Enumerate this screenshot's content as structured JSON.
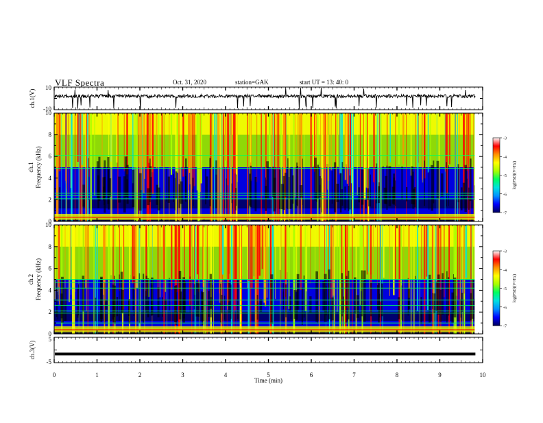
{
  "header": {
    "title": "VLF Spectra",
    "date": "Oct. 31, 2020",
    "station": "station=GAK",
    "start": "start  UT =   13: 40: 0"
  },
  "colors": {
    "spectrogram_palette": [
      "#000000",
      "#00007a",
      "#0000ff",
      "#0090ff",
      "#00e0e0",
      "#00ff60",
      "#a8ff00",
      "#ffff00",
      "#ff9000",
      "#ff0000",
      "#ffffff"
    ]
  },
  "chart_data": [
    {
      "type": "line",
      "panel": "ch1-waveform",
      "ylabel": "ch.1(V)",
      "ylim": [
        -10,
        10
      ],
      "yticks": [
        "10",
        "-10"
      ],
      "xlim": [
        0,
        10
      ],
      "description_values": "noisy waveform near +2 V with sporadic negative spikes"
    },
    {
      "type": "heatmap",
      "panel": "ch1-spectrogram",
      "ylabel": "ch.1\nFrequency (kHz)",
      "ylabel_line1": "ch.1",
      "ylabel_line2": "Frequency (kHz)",
      "ylim": [
        0,
        10
      ],
      "yticks": [
        "0",
        "2",
        "4",
        "6",
        "8",
        "10"
      ],
      "xlim": [
        0,
        9.83
      ],
      "colorbar": {
        "label": "log(PSD)(V²/Hz)",
        "range": [
          -7,
          -3
        ],
        "ticks": [
          "-3",
          "-4",
          "-5",
          "-6",
          "-7"
        ]
      }
    },
    {
      "type": "heatmap",
      "panel": "ch2-spectrogram",
      "ylabel": "ch.2\nFrequency (kHz)",
      "ylabel_line1": "ch.2",
      "ylabel_line2": "Frequency (kHz)",
      "ylim": [
        0,
        10
      ],
      "yticks": [
        "0",
        "2",
        "4",
        "6",
        "8",
        "10"
      ],
      "xlim": [
        0,
        9.83
      ],
      "colorbar": {
        "label": "log(PSD)(V²/Hz)",
        "range": [
          -7,
          -3
        ],
        "ticks": [
          "-3",
          "-4",
          "-5",
          "-6",
          "-7"
        ]
      }
    },
    {
      "type": "line",
      "panel": "ch3-waveform",
      "ylabel": "ch.3(V)",
      "ylim": [
        -5,
        5
      ],
      "yticks": [
        "5",
        "-5"
      ],
      "xlim": [
        0,
        9.83
      ],
      "constant_value": -1.6
    }
  ],
  "xaxis": {
    "label": "Time (min)",
    "range": [
      0,
      10
    ],
    "ticks": [
      "0",
      "1",
      "2",
      "3",
      "4",
      "5",
      "6",
      "7",
      "8",
      "9",
      "10"
    ]
  }
}
